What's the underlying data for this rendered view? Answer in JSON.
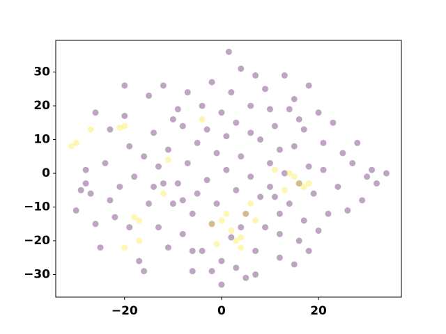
{
  "chart_data": {
    "type": "scatter",
    "series": [
      {
        "color": "#440154",
        "x": [
          1.5,
          -28,
          -29,
          -30,
          -28,
          -27,
          -26,
          -25,
          -24,
          -23,
          -22,
          -21,
          -20,
          -20,
          -19,
          -18,
          -17,
          -16,
          -15,
          -15,
          -14,
          -13,
          -13,
          -12,
          -11,
          -11,
          -10,
          -9,
          -9,
          -8,
          -8,
          -7,
          -7,
          -6,
          -6,
          -5,
          -5,
          -4,
          -4,
          -3,
          -3,
          -2,
          -2,
          -1,
          -1,
          0,
          0,
          0,
          1,
          1,
          2,
          2,
          3,
          3,
          4,
          4,
          5,
          5,
          6,
          6,
          7,
          7,
          8,
          8,
          9,
          9,
          10,
          10,
          11,
          11,
          12,
          12,
          13,
          13,
          14,
          14,
          15,
          15,
          16,
          16,
          17,
          17,
          18,
          18,
          19,
          20,
          20,
          21,
          21,
          22,
          23,
          24,
          25,
          26,
          27,
          28,
          29,
          30,
          31,
          32,
          34,
          -26,
          -23,
          -19,
          -14,
          -10,
          -6,
          -2,
          3,
          7,
          12,
          15,
          18,
          10,
          -12,
          -8,
          4,
          12,
          16,
          6,
          -16
        ],
        "values": [
          36,
          1,
          -5,
          -11,
          -3,
          -6,
          -15,
          -22,
          3,
          -8,
          -13,
          -4,
          26,
          17,
          8,
          -1,
          -26,
          -29,
          23,
          -9,
          12,
          2,
          -16,
          26,
          7,
          -22,
          -9,
          19,
          -3,
          14,
          -18,
          24,
          3,
          -12,
          -29,
          9,
          -6,
          20,
          -23,
          13,
          -2,
          27,
          -15,
          6,
          -9,
          18,
          -26,
          -33,
          1,
          11,
          24,
          -19,
          -5,
          15,
          31,
          5,
          -12,
          -31,
          20,
          -1,
          29,
          -23,
          10,
          -7,
          -16,
          25,
          3,
          -4,
          -7,
          14,
          -25,
          -12,
          29,
          0,
          19,
          -9,
          22,
          8,
          -3,
          -20,
          13,
          -14,
          26,
          2,
          -6,
          18,
          -17,
          1,
          9,
          -12,
          15,
          -4,
          6,
          -11,
          3,
          9,
          -8,
          -1,
          1,
          -3,
          0,
          18,
          13,
          -16,
          -4,
          16,
          -23,
          -29,
          -28,
          -30,
          -18,
          -27,
          -23,
          19,
          -3,
          -8,
          -16,
          7,
          16,
          12,
          5
        ]
      },
      {
        "color": "#fde725",
        "x": [
          -31,
          -30,
          -27,
          -21,
          -20,
          -4,
          -20,
          -18,
          -17,
          -17,
          -12,
          -11,
          -2,
          0,
          1,
          2,
          3,
          4,
          5,
          6,
          7,
          -1,
          4,
          14,
          15,
          16,
          17,
          18,
          13,
          11
        ],
        "values": [
          8,
          9,
          13,
          13.5,
          14,
          16,
          -22,
          -13,
          -14,
          -20,
          -6,
          4,
          -15,
          -14,
          -12,
          -17,
          -20,
          -19,
          -12,
          -9,
          -14,
          -21,
          -22,
          0,
          -1,
          -3,
          -4,
          -3,
          -5,
          1
        ]
      }
    ],
    "alpha": 0.35,
    "xlim": [
      -34.2,
      37.1
    ],
    "ylim": [
      -36.7,
      39.4
    ],
    "xticks": [
      {
        "value": -20,
        "label": "−20"
      },
      0,
      20
    ],
    "yticks": [
      {
        "value": -30,
        "label": "−30"
      },
      {
        "value": -20,
        "label": "−20"
      },
      {
        "value": -10,
        "label": "−10"
      },
      0,
      10,
      20,
      30
    ]
  }
}
